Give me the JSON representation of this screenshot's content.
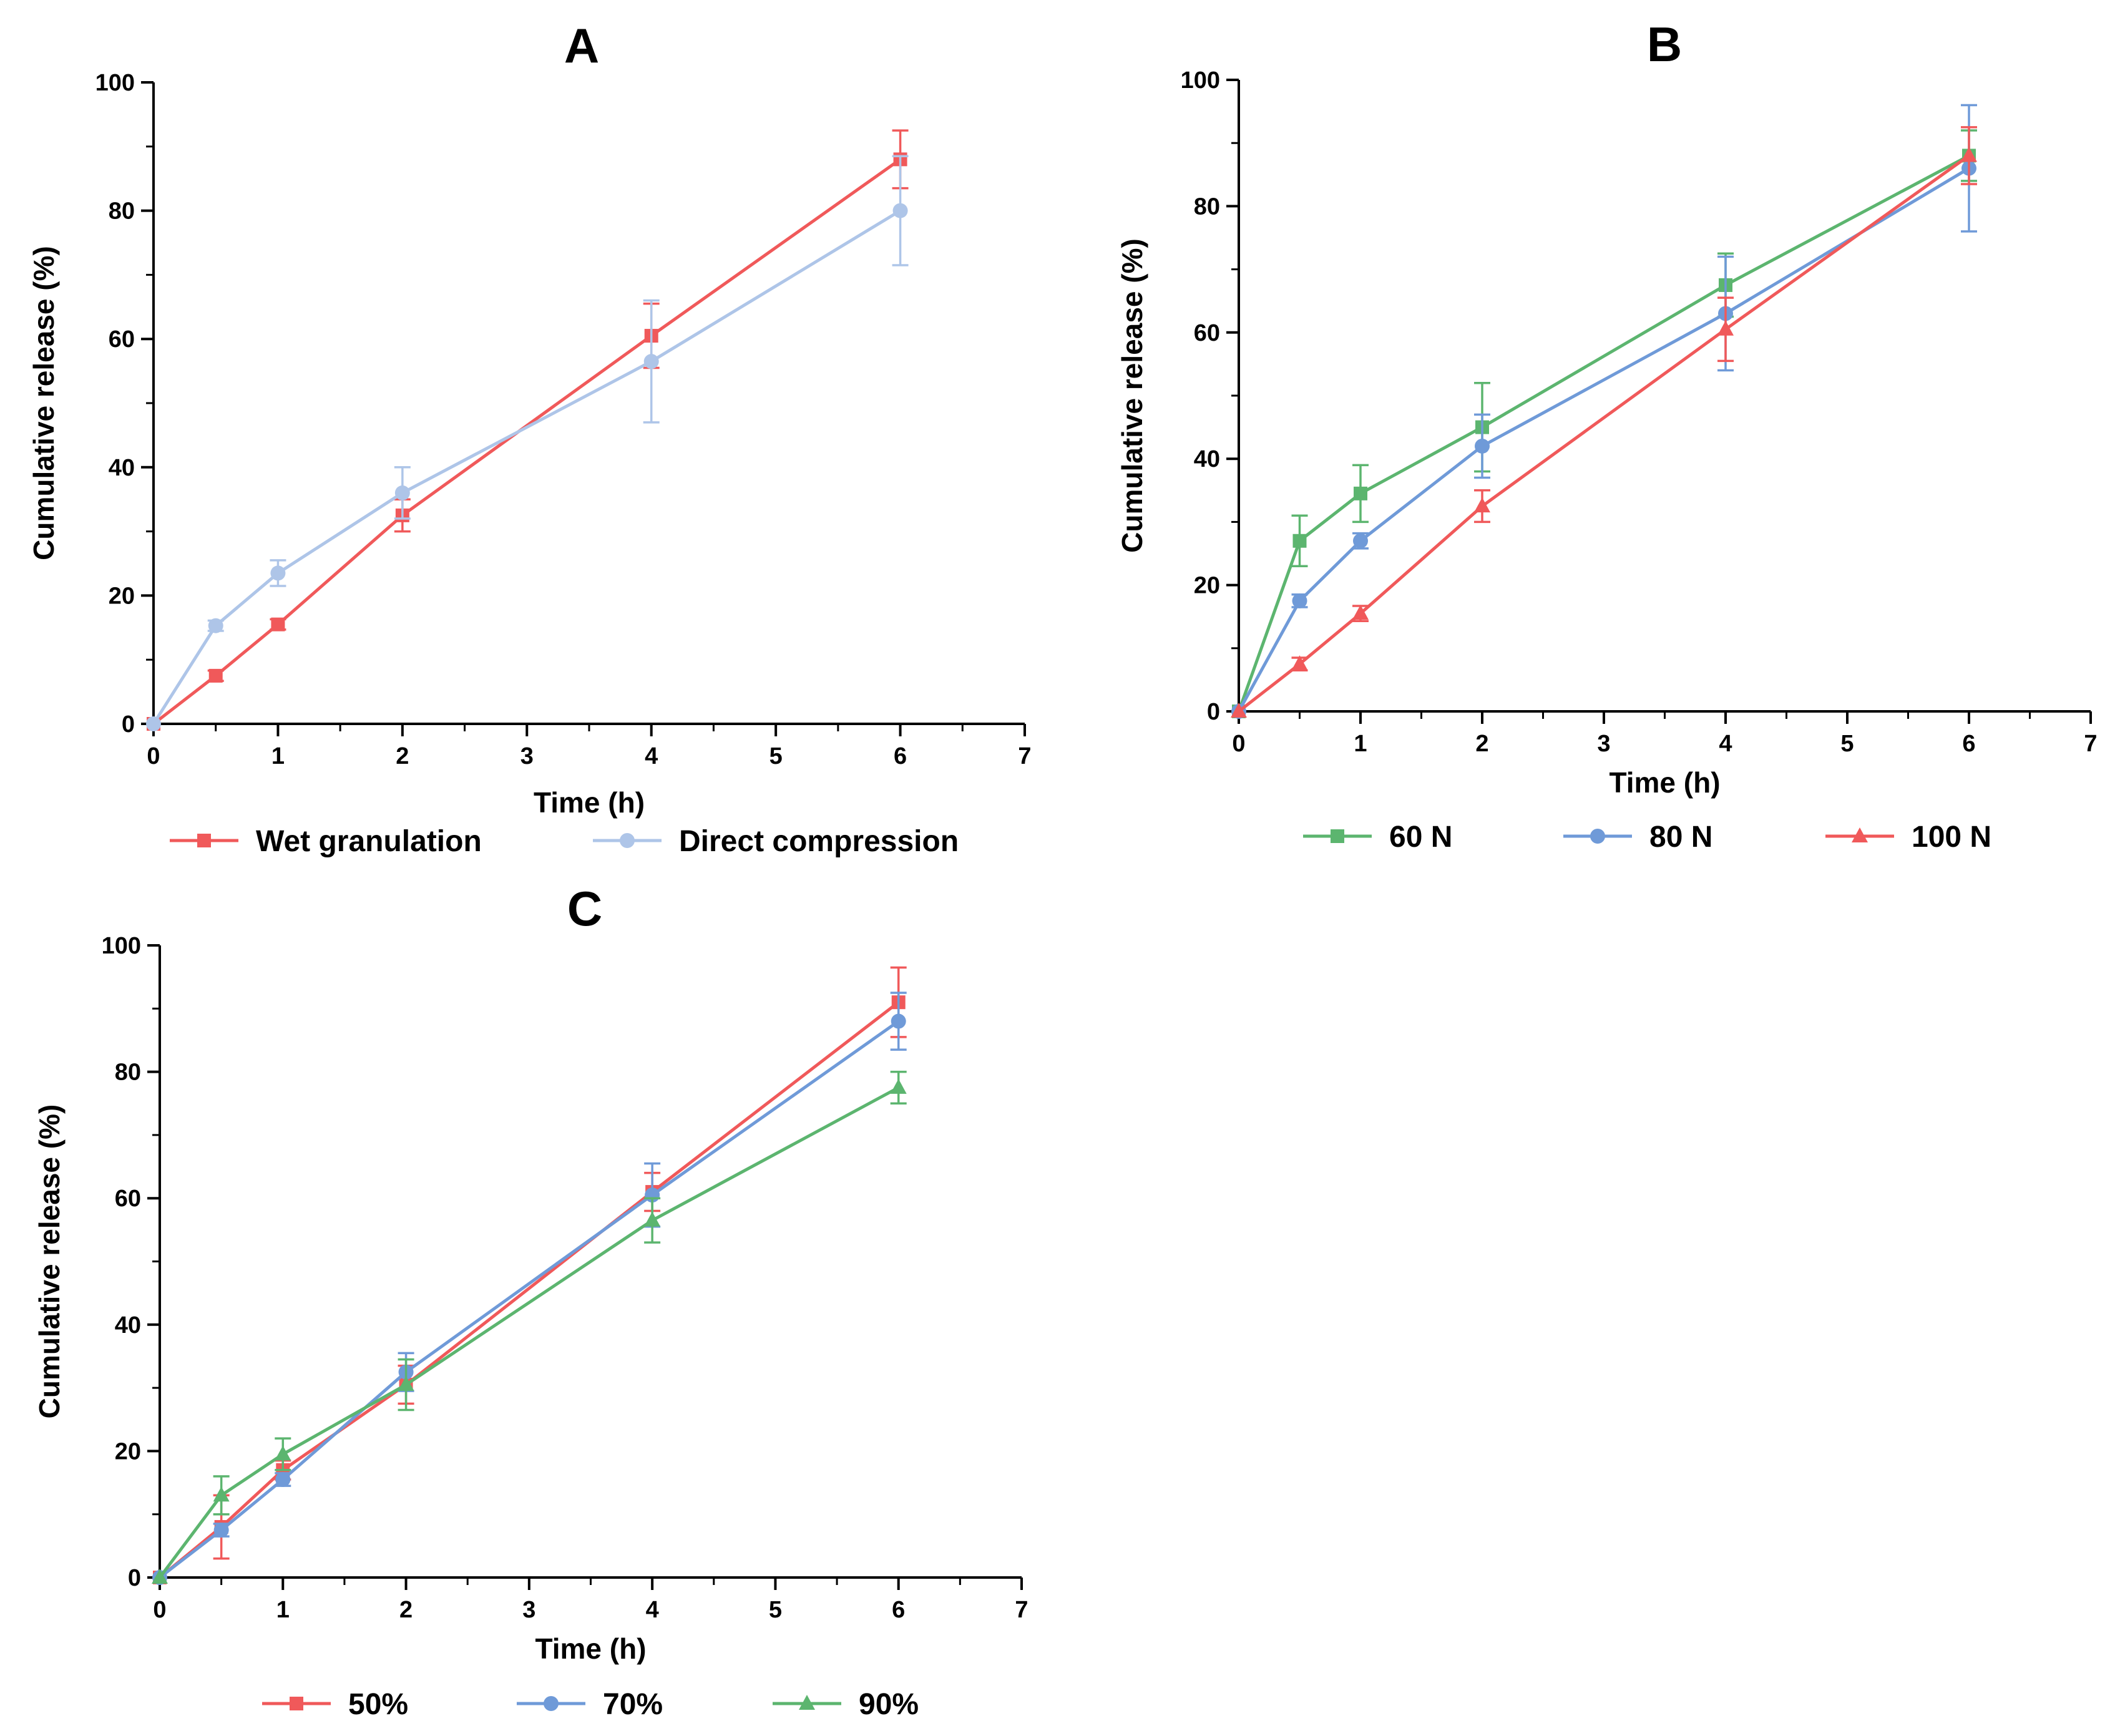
{
  "chart_data": [
    {
      "type": "line",
      "title": "A",
      "xlabel": "Time (h)",
      "ylabel": "Cumulative release (%)",
      "xlim": [
        0,
        7
      ],
      "ylim": [
        0,
        100
      ],
      "xticks": [
        "0",
        "1",
        "2",
        "3",
        "4",
        "5",
        "6",
        "7"
      ],
      "yticks": [
        "0",
        "20",
        "40",
        "60",
        "80",
        "100"
      ],
      "grid": false,
      "legend_position": "bottom",
      "x": [
        0,
        0.5,
        1,
        2,
        4,
        6
      ],
      "series": [
        {
          "name": "Wet granulation",
          "color": "#f0595a",
          "marker": "square",
          "values": [
            0,
            7.5,
            15.5,
            32.5,
            60.5,
            88
          ],
          "errors": [
            0,
            0.8,
            0.8,
            2.5,
            5,
            4.5
          ]
        },
        {
          "name": "Direct compression",
          "color": "#aec5e8",
          "marker": "circle",
          "values": [
            0,
            15.3,
            23.5,
            36,
            56.5,
            80
          ],
          "errors": [
            0,
            0.8,
            2,
            4,
            9.5,
            8.5
          ]
        }
      ]
    },
    {
      "type": "line",
      "title": "B",
      "xlabel": "Time (h)",
      "ylabel": "Cumulative release (%)",
      "xlim": [
        0,
        7
      ],
      "ylim": [
        0,
        100
      ],
      "xticks": [
        "0",
        "1",
        "2",
        "3",
        "4",
        "5",
        "6",
        "7"
      ],
      "yticks": [
        "0",
        "20",
        "40",
        "60",
        "80",
        "100"
      ],
      "grid": false,
      "legend_position": "bottom",
      "x": [
        0,
        0.5,
        1,
        2,
        4,
        6
      ],
      "series": [
        {
          "name": "60 N",
          "color": "#5cb56f",
          "marker": "square",
          "values": [
            0,
            27,
            34.5,
            45,
            67.5,
            88
          ],
          "errors": [
            0,
            4,
            4.5,
            7,
            5,
            4
          ]
        },
        {
          "name": "80 N",
          "color": "#6f9ad8",
          "marker": "circle",
          "values": [
            0,
            17.5,
            27,
            42,
            63,
            86
          ],
          "errors": [
            0,
            1,
            1.2,
            5,
            9,
            10
          ]
        },
        {
          "name": "100 N",
          "color": "#f0595a",
          "marker": "triangle",
          "values": [
            0,
            7.5,
            15.5,
            32.5,
            60.5,
            88
          ],
          "errors": [
            0,
            1,
            1.2,
            2.5,
            5,
            4.5
          ]
        }
      ]
    },
    {
      "type": "line",
      "title": "C",
      "xlabel": "Time (h)",
      "ylabel": "Cumulative release (%)",
      "xlim": [
        0,
        7
      ],
      "ylim": [
        0,
        100
      ],
      "xticks": [
        "0",
        "1",
        "2",
        "3",
        "4",
        "5",
        "6",
        "7"
      ],
      "yticks": [
        "0",
        "20",
        "40",
        "60",
        "80",
        "100"
      ],
      "grid": false,
      "legend_position": "bottom",
      "x": [
        0,
        0.5,
        1,
        2,
        4,
        6
      ],
      "series": [
        {
          "name": "50%",
          "color": "#f0595a",
          "marker": "square",
          "values": [
            0,
            8,
            17,
            30.5,
            61,
            91
          ],
          "errors": [
            0,
            5,
            1.5,
            3,
            3,
            5.5
          ]
        },
        {
          "name": "70%",
          "color": "#6f9ad8",
          "marker": "circle",
          "values": [
            0,
            7.5,
            15.5,
            32.5,
            60.5,
            88
          ],
          "errors": [
            0,
            1,
            1,
            3,
            5,
            4.5
          ]
        },
        {
          "name": "90%",
          "color": "#5cb56f",
          "marker": "triangle",
          "values": [
            0,
            13,
            19.5,
            30.5,
            56.5,
            77.5
          ],
          "errors": [
            0,
            3,
            2.5,
            4,
            3.5,
            2.5
          ]
        }
      ]
    }
  ]
}
